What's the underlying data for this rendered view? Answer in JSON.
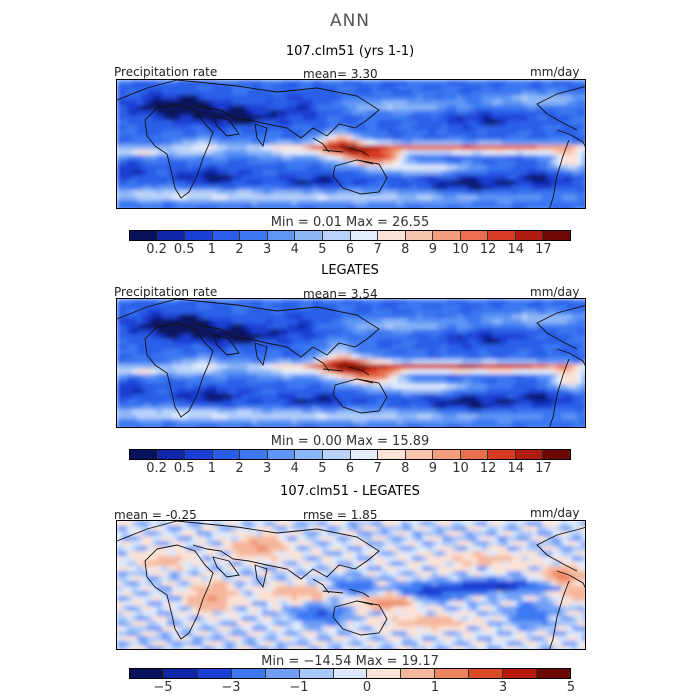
{
  "title": "ANN",
  "colors": {
    "abs": [
      "#08125c",
      "#0d25a6",
      "#1a3fd4",
      "#2a5ee8",
      "#3b78f2",
      "#5f96f5",
      "#8db6f7",
      "#b9d3fa",
      "#e4eefc",
      "#fbe3d8",
      "#f8c4ae",
      "#f39e7f",
      "#ea6f4e",
      "#d83b22",
      "#b01d10",
      "#6e0805"
    ],
    "diff": [
      "#08125c",
      "#0d25a6",
      "#1a3fd4",
      "#3b78f2",
      "#6f9ff7",
      "#a8c7fa",
      "#dce9fc",
      "#fbe2d6",
      "#f5b79c",
      "#ec8660",
      "#dc4a2a",
      "#b7190c",
      "#6e0805"
    ]
  },
  "chart_data": [
    {
      "type": "heatmap",
      "title": "107.clm51 (yrs 1-1)",
      "variable_label": "Precipitation rate",
      "units": "mm/day",
      "mean_text": "mean=   3.30",
      "minmax_text": "Min =   0.01 Max =  26.55",
      "colorbar_labels": [
        "0.2",
        "0.5",
        "1",
        "2",
        "3",
        "4",
        "5",
        "6",
        "7",
        "8",
        "9",
        "10",
        "12",
        "14",
        "17"
      ],
      "mean": 3.3,
      "min": 0.01,
      "max": 26.55
    },
    {
      "type": "heatmap",
      "title": "LEGATES",
      "variable_label": "Precipitation rate",
      "units": "mm/day",
      "mean_text": "mean=   3.54",
      "minmax_text": "Min =   0.00 Max =  15.89",
      "colorbar_labels": [
        "0.2",
        "0.5",
        "1",
        "2",
        "3",
        "4",
        "5",
        "6",
        "7",
        "8",
        "9",
        "10",
        "12",
        "14",
        "17"
      ],
      "mean": 3.54,
      "min": 0.0,
      "max": 15.89
    },
    {
      "type": "heatmap",
      "title": "107.clm51 - LEGATES",
      "units": "mm/day",
      "mean_text": "mean =  -0.25",
      "rmse_text": "rmse =   1.85",
      "minmax_text": "Min = −14.54 Max =  19.17",
      "colorbar_labels": [
        "−5",
        "−3",
        "−1",
        "0",
        "1",
        "3",
        "5"
      ],
      "mean": -0.25,
      "rmse": 1.85,
      "min": -14.54,
      "max": 19.17
    }
  ]
}
